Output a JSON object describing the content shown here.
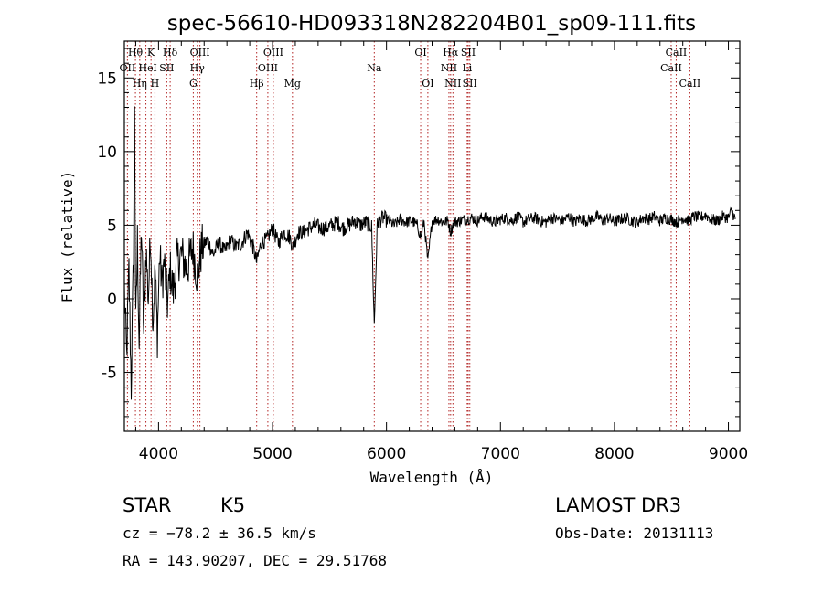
{
  "chart_data": {
    "type": "line",
    "title": "spec-56610-HD093318N282204B01_sp09-111.fits",
    "xlabel": "Wavelength (Å)",
    "ylabel": "Flux (relative)",
    "xlim": [
      3700,
      9100
    ],
    "ylim": [
      -9,
      17.5
    ],
    "xticks": [
      4000,
      5000,
      6000,
      7000,
      8000,
      9000
    ],
    "yticks": [
      -5,
      0,
      5,
      10,
      15
    ],
    "series": [
      {
        "name": "flux",
        "x": [
          3700,
          3720,
          3740,
          3760,
          3780,
          3790,
          3800,
          3815,
          3830,
          3850,
          3870,
          3890,
          3910,
          3930,
          3950,
          3970,
          3990,
          4010,
          4030,
          4050,
          4080,
          4100,
          4130,
          4160,
          4200,
          4250,
          4300,
          4340,
          4380,
          4430,
          4480,
          4530,
          4580,
          4630,
          4680,
          4730,
          4780,
          4830,
          4861,
          4900,
          4950,
          5000,
          5050,
          5100,
          5150,
          5183,
          5220,
          5270,
          5320,
          5370,
          5420,
          5470,
          5520,
          5570,
          5620,
          5670,
          5720,
          5770,
          5820,
          5870,
          5893,
          5920,
          5970,
          6020,
          6070,
          6120,
          6170,
          6220,
          6270,
          6300,
          6330,
          6363,
          6400,
          6450,
          6500,
          6540,
          6563,
          6590,
          6640,
          6700,
          6750,
          6800,
          6850,
          6900,
          6950,
          7000,
          7050,
          7100,
          7150,
          7200,
          7250,
          7300,
          7350,
          7400,
          7450,
          7500,
          7550,
          7600,
          7650,
          7700,
          7750,
          7800,
          7850,
          7900,
          7950,
          8000,
          8050,
          8100,
          8150,
          8200,
          8250,
          8300,
          8350,
          8400,
          8450,
          8500,
          8550,
          8600,
          8650,
          8700,
          8750,
          8800,
          8850,
          8900,
          8950,
          9000,
          9030,
          9060
        ],
        "y": [
          0.5,
          -4.0,
          2.0,
          -6.0,
          3.0,
          13.5,
          -2.0,
          4.0,
          -3.0,
          5.0,
          -2.5,
          3.5,
          0.0,
          4.5,
          -1.5,
          2.0,
          -2.5,
          3.0,
          1.0,
          2.5,
          -0.5,
          2.0,
          0.5,
          2.5,
          3.0,
          2.0,
          3.5,
          1.5,
          3.5,
          4.0,
          3.0,
          3.8,
          3.2,
          4.0,
          3.5,
          3.8,
          4.5,
          3.5,
          2.5,
          3.8,
          4.0,
          4.8,
          3.8,
          4.5,
          4.2,
          3.5,
          4.5,
          4.5,
          4.8,
          5.0,
          4.8,
          4.8,
          5.0,
          5.2,
          4.8,
          5.0,
          5.3,
          5.0,
          5.2,
          4.9,
          -1.8,
          5.2,
          5.5,
          5.3,
          5.0,
          5.4,
          5.2,
          5.3,
          5.0,
          4.2,
          5.2,
          2.5,
          5.3,
          5.4,
          5.2,
          5.3,
          4.5,
          5.2,
          5.3,
          5.4,
          5.5,
          5.3,
          5.6,
          5.4,
          5.2,
          5.4,
          5.5,
          5.3,
          5.6,
          5.2,
          5.4,
          5.5,
          5.3,
          5.2,
          5.5,
          5.4,
          5.3,
          5.6,
          5.2,
          5.5,
          5.3,
          5.4,
          5.6,
          5.3,
          5.5,
          5.2,
          5.4,
          5.5,
          5.3,
          5.2,
          5.5,
          5.4,
          5.6,
          5.3,
          5.5,
          5.4,
          5.2,
          5.5,
          5.3,
          5.6,
          5.5,
          5.7,
          5.4,
          5.3,
          5.6,
          5.5,
          6.0,
          5.4
        ]
      }
    ],
    "spectral_lines": [
      {
        "label": "Hθ",
        "wave": 3797,
        "row": 1
      },
      {
        "label": "K",
        "wave": 3934,
        "row": 1
      },
      {
        "label": "Hδ",
        "wave": 4102,
        "row": 1
      },
      {
        "label": "OIII",
        "wave": 4363,
        "row": 1
      },
      {
        "label": "OIII",
        "wave": 5007,
        "row": 1
      },
      {
        "label": "OI",
        "wave": 6300,
        "row": 1
      },
      {
        "label": "Hα",
        "wave": 6563,
        "row": 1
      },
      {
        "label": "SII",
        "wave": 6717,
        "row": 1
      },
      {
        "label": "CaII",
        "wave": 8542,
        "row": 1
      },
      {
        "label": "OII",
        "wave": 3727,
        "row": 2
      },
      {
        "label": "He",
        "wave": 3889,
        "row": 2
      },
      {
        "label": "I",
        "wave": 3969,
        "row": 2
      },
      {
        "label": "SII",
        "wave": 4072,
        "row": 2
      },
      {
        "label": "Hγ",
        "wave": 4340,
        "row": 2
      },
      {
        "label": "OIII",
        "wave": 4959,
        "row": 2
      },
      {
        "label": "Na",
        "wave": 5893,
        "row": 2
      },
      {
        "label": "NII",
        "wave": 6548,
        "row": 2
      },
      {
        "label": "Li",
        "wave": 6708,
        "row": 2
      },
      {
        "label": "CaII",
        "wave": 8498,
        "row": 2
      },
      {
        "label": "Hη",
        "wave": 3835,
        "row": 3
      },
      {
        "label": "H",
        "wave": 3968,
        "row": 3
      },
      {
        "label": "G",
        "wave": 4305,
        "row": 3
      },
      {
        "label": "Hβ",
        "wave": 4861,
        "row": 3
      },
      {
        "label": "Mg",
        "wave": 5175,
        "row": 3
      },
      {
        "label": "OI",
        "wave": 6363,
        "row": 3
      },
      {
        "label": "NII",
        "wave": 6583,
        "row": 3
      },
      {
        "label": "SII",
        "wave": 6731,
        "row": 3
      },
      {
        "label": "CaII",
        "wave": 8662,
        "row": 3
      }
    ]
  },
  "info": {
    "class": "STAR",
    "subclass": "K5",
    "survey": "LAMOST DR3",
    "redshift": "cz = −78.2 ± 36.5 km/s",
    "obs_date": "Obs-Date: 20131113",
    "coords": "RA = 143.90207, DEC =  29.51768"
  },
  "colors": {
    "line_marker": "#b22222",
    "spectrum": "#000000",
    "axis": "#000000"
  }
}
